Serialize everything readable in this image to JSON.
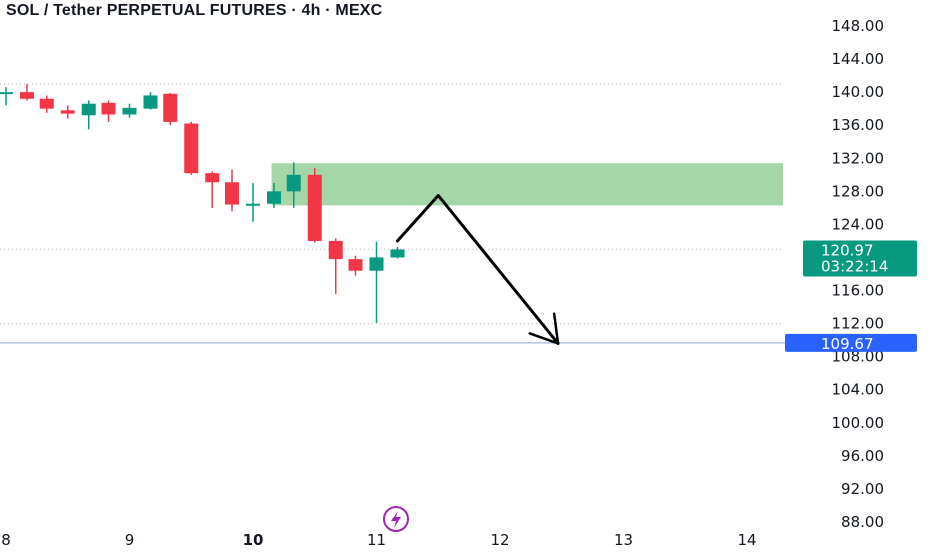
{
  "header": {
    "title": "SOL / Tether PERPETUAL FUTURES · 4h · MEXC"
  },
  "chart_data": {
    "type": "candlestick",
    "title": "SOL / Tether PERPETUAL FUTURES · 4h · MEXC",
    "xlabel": "",
    "ylabel": "",
    "ylim": [
      88,
      150
    ],
    "xlim": [
      8,
      14.3
    ],
    "y_ticks": [
      "148.00",
      "144.00",
      "140.00",
      "136.00",
      "132.00",
      "128.00",
      "124.00",
      "120.00",
      "116.00",
      "112.00",
      "108.00",
      "104.00",
      "100.00",
      "96.00",
      "92.00",
      "88.00"
    ],
    "x_ticks": [
      {
        "label": "8",
        "value": 8,
        "bold": false
      },
      {
        "label": "9",
        "value": 9,
        "bold": false
      },
      {
        "label": "10",
        "value": 10,
        "bold": true
      },
      {
        "label": "11",
        "value": 11,
        "bold": false
      },
      {
        "label": "12",
        "value": 12,
        "bold": false
      },
      {
        "label": "13",
        "value": 13,
        "bold": false
      },
      {
        "label": "14",
        "value": 14,
        "bold": false
      }
    ],
    "candles": [
      {
        "t": 8.0,
        "o": 139.8,
        "h": 140.6,
        "l": 138.4,
        "c": 140.0
      },
      {
        "t": 8.17,
        "o": 140.0,
        "h": 141.0,
        "l": 139.0,
        "c": 139.2
      },
      {
        "t": 8.33,
        "o": 139.2,
        "h": 139.6,
        "l": 137.5,
        "c": 138.0
      },
      {
        "t": 8.5,
        "o": 137.8,
        "h": 138.4,
        "l": 136.8,
        "c": 137.4
      },
      {
        "t": 8.67,
        "o": 137.2,
        "h": 139.0,
        "l": 135.5,
        "c": 138.6
      },
      {
        "t": 8.83,
        "o": 138.7,
        "h": 139.0,
        "l": 136.4,
        "c": 137.3
      },
      {
        "t": 9.0,
        "o": 137.3,
        "h": 138.6,
        "l": 136.9,
        "c": 138.1
      },
      {
        "t": 9.17,
        "o": 138.0,
        "h": 140.0,
        "l": 137.9,
        "c": 139.6
      },
      {
        "t": 9.33,
        "o": 139.8,
        "h": 139.9,
        "l": 136.0,
        "c": 136.4
      },
      {
        "t": 9.5,
        "o": 136.2,
        "h": 136.4,
        "l": 130.0,
        "c": 130.2
      },
      {
        "t": 9.67,
        "o": 130.2,
        "h": 130.4,
        "l": 126.0,
        "c": 129.1
      },
      {
        "t": 9.83,
        "o": 129.1,
        "h": 130.6,
        "l": 125.6,
        "c": 126.4
      },
      {
        "t": 10.0,
        "o": 126.4,
        "h": 129.0,
        "l": 124.3,
        "c": 126.5
      },
      {
        "t": 10.17,
        "o": 126.5,
        "h": 129.0,
        "l": 126.0,
        "c": 128.0
      },
      {
        "t": 10.33,
        "o": 128.0,
        "h": 131.5,
        "l": 126.0,
        "c": 130.0
      },
      {
        "t": 10.5,
        "o": 130.0,
        "h": 130.8,
        "l": 121.8,
        "c": 122.0
      },
      {
        "t": 10.67,
        "o": 122.0,
        "h": 122.3,
        "l": 115.6,
        "c": 119.8
      },
      {
        "t": 10.83,
        "o": 119.8,
        "h": 120.2,
        "l": 117.8,
        "c": 118.4
      },
      {
        "t": 11.0,
        "o": 118.4,
        "h": 121.9,
        "l": 112.1,
        "c": 120.0
      },
      {
        "t": 11.17,
        "o": 120.0,
        "h": 121.3,
        "l": 119.9,
        "c": 120.97
      }
    ],
    "zone": {
      "x_start": 10.15,
      "x_end": 14.3,
      "y_low": 126.3,
      "y_high": 131.4,
      "color": "#a5d6a7"
    },
    "projection_path": [
      {
        "x": 11.17,
        "y": 122.0
      },
      {
        "x": 11.5,
        "y": 127.5
      },
      {
        "x": 12.47,
        "y": 109.6
      }
    ],
    "dotted_lines": [
      141.0,
      121.0,
      112.0
    ],
    "horizontal_line": 109.67,
    "last_price": {
      "value": 120.97,
      "label": "120.97",
      "countdown": "03:22:14",
      "color": "#089981"
    },
    "line_label": {
      "value": 109.67,
      "label": "109.67",
      "color": "#2962ff"
    },
    "colors": {
      "up": "#089981",
      "down": "#f23645",
      "grid": "#d1d4dc",
      "text": "#131722"
    }
  }
}
